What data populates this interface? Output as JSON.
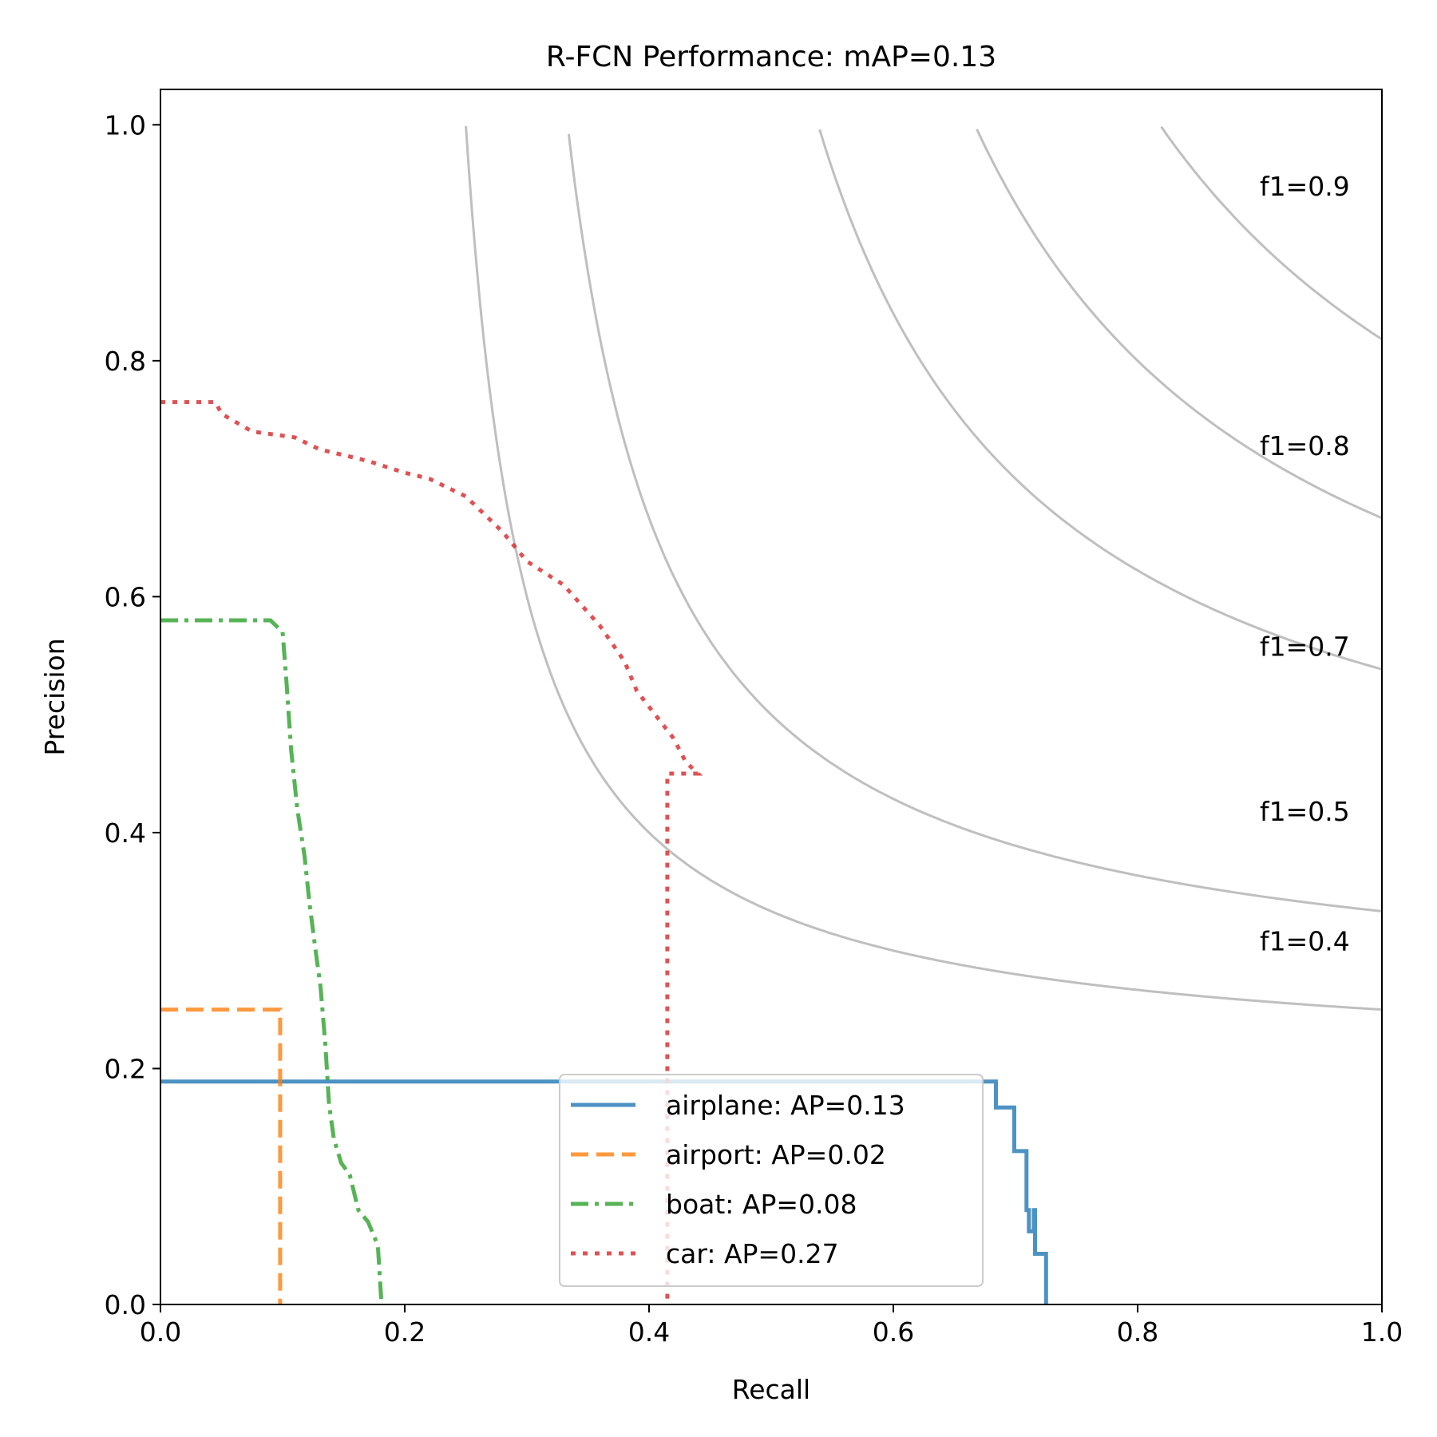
{
  "chart_data": {
    "type": "line",
    "title": "R-FCN Performance:  mAP=0.13",
    "xlabel": "Recall",
    "ylabel": "Precision",
    "xlim": [
      0,
      1
    ],
    "ylim": [
      0,
      1.03
    ],
    "x_ticks": [
      0.0,
      0.2,
      0.4,
      0.6,
      0.8,
      1.0
    ],
    "y_ticks": [
      0.0,
      0.2,
      0.4,
      0.6,
      0.8,
      1.0
    ],
    "x_tick_labels": [
      "0.0",
      "0.2",
      "0.4",
      "0.6",
      "0.8",
      "1.0"
    ],
    "y_tick_labels": [
      "0.0",
      "0.2",
      "0.4",
      "0.6",
      "0.8",
      "1.0"
    ],
    "legend_position": "bottom-center",
    "f1_isolines": [
      {
        "f1": 0.4,
        "label": "f1=0.4",
        "label_y": 0.28
      },
      {
        "f1": 0.5,
        "label": "f1=0.5",
        "label_y": 0.39
      },
      {
        "f1": 0.7,
        "label": "f1=0.7",
        "label_y": 0.53
      },
      {
        "f1": 0.8,
        "label": "f1=0.8",
        "label_y": 0.7
      },
      {
        "f1": 0.9,
        "label": "f1=0.9",
        "label_y": 0.92
      }
    ],
    "series": [
      {
        "name": "airplane",
        "legend": "airplane: AP=0.13",
        "color": "#1f77b4",
        "style": "solid",
        "points": [
          [
            0,
            0.189
          ],
          [
            0.684,
            0.189
          ],
          [
            0.684,
            0.167
          ],
          [
            0.699,
            0.167
          ],
          [
            0.699,
            0.13
          ],
          [
            0.709,
            0.13
          ],
          [
            0.709,
            0.08
          ],
          [
            0.711,
            0.08
          ],
          [
            0.711,
            0.062
          ],
          [
            0.715,
            0.062
          ],
          [
            0.715,
            0.08
          ],
          [
            0.716,
            0.08
          ],
          [
            0.716,
            0.043
          ],
          [
            0.725,
            0.043
          ],
          [
            0.725,
            0.0
          ]
        ]
      },
      {
        "name": "airport",
        "legend": "airport: AP=0.02",
        "color": "#ff7f0e",
        "style": "dashed",
        "points": [
          [
            0,
            0.25
          ],
          [
            0.098,
            0.25
          ],
          [
            0.098,
            0.0
          ]
        ]
      },
      {
        "name": "boat",
        "legend": "boat: AP=0.08",
        "color": "#2ca02c",
        "style": "dashdot",
        "points": [
          [
            0,
            0.58
          ],
          [
            0.09,
            0.58
          ],
          [
            0.1,
            0.57
          ],
          [
            0.103,
            0.53
          ],
          [
            0.107,
            0.47
          ],
          [
            0.112,
            0.42
          ],
          [
            0.118,
            0.38
          ],
          [
            0.122,
            0.34
          ],
          [
            0.127,
            0.3
          ],
          [
            0.131,
            0.27
          ],
          [
            0.135,
            0.22
          ],
          [
            0.138,
            0.17
          ],
          [
            0.142,
            0.14
          ],
          [
            0.148,
            0.12
          ],
          [
            0.155,
            0.11
          ],
          [
            0.162,
            0.08
          ],
          [
            0.17,
            0.07
          ],
          [
            0.178,
            0.05
          ],
          [
            0.181,
            0.0
          ]
        ]
      },
      {
        "name": "car",
        "legend": "car: AP=0.27",
        "color": "#d62728",
        "style": "dotted",
        "points": [
          [
            0,
            0.765
          ],
          [
            0.045,
            0.765
          ],
          [
            0.05,
            0.755
          ],
          [
            0.075,
            0.74
          ],
          [
            0.11,
            0.735
          ],
          [
            0.13,
            0.725
          ],
          [
            0.17,
            0.715
          ],
          [
            0.2,
            0.705
          ],
          [
            0.22,
            0.7
          ],
          [
            0.25,
            0.685
          ],
          [
            0.27,
            0.665
          ],
          [
            0.28,
            0.655
          ],
          [
            0.3,
            0.63
          ],
          [
            0.33,
            0.61
          ],
          [
            0.36,
            0.575
          ],
          [
            0.38,
            0.545
          ],
          [
            0.39,
            0.52
          ],
          [
            0.405,
            0.5
          ],
          [
            0.42,
            0.48
          ],
          [
            0.43,
            0.46
          ],
          [
            0.44,
            0.45
          ],
          [
            0.415,
            0.45
          ],
          [
            0.415,
            0.0
          ]
        ]
      }
    ]
  }
}
